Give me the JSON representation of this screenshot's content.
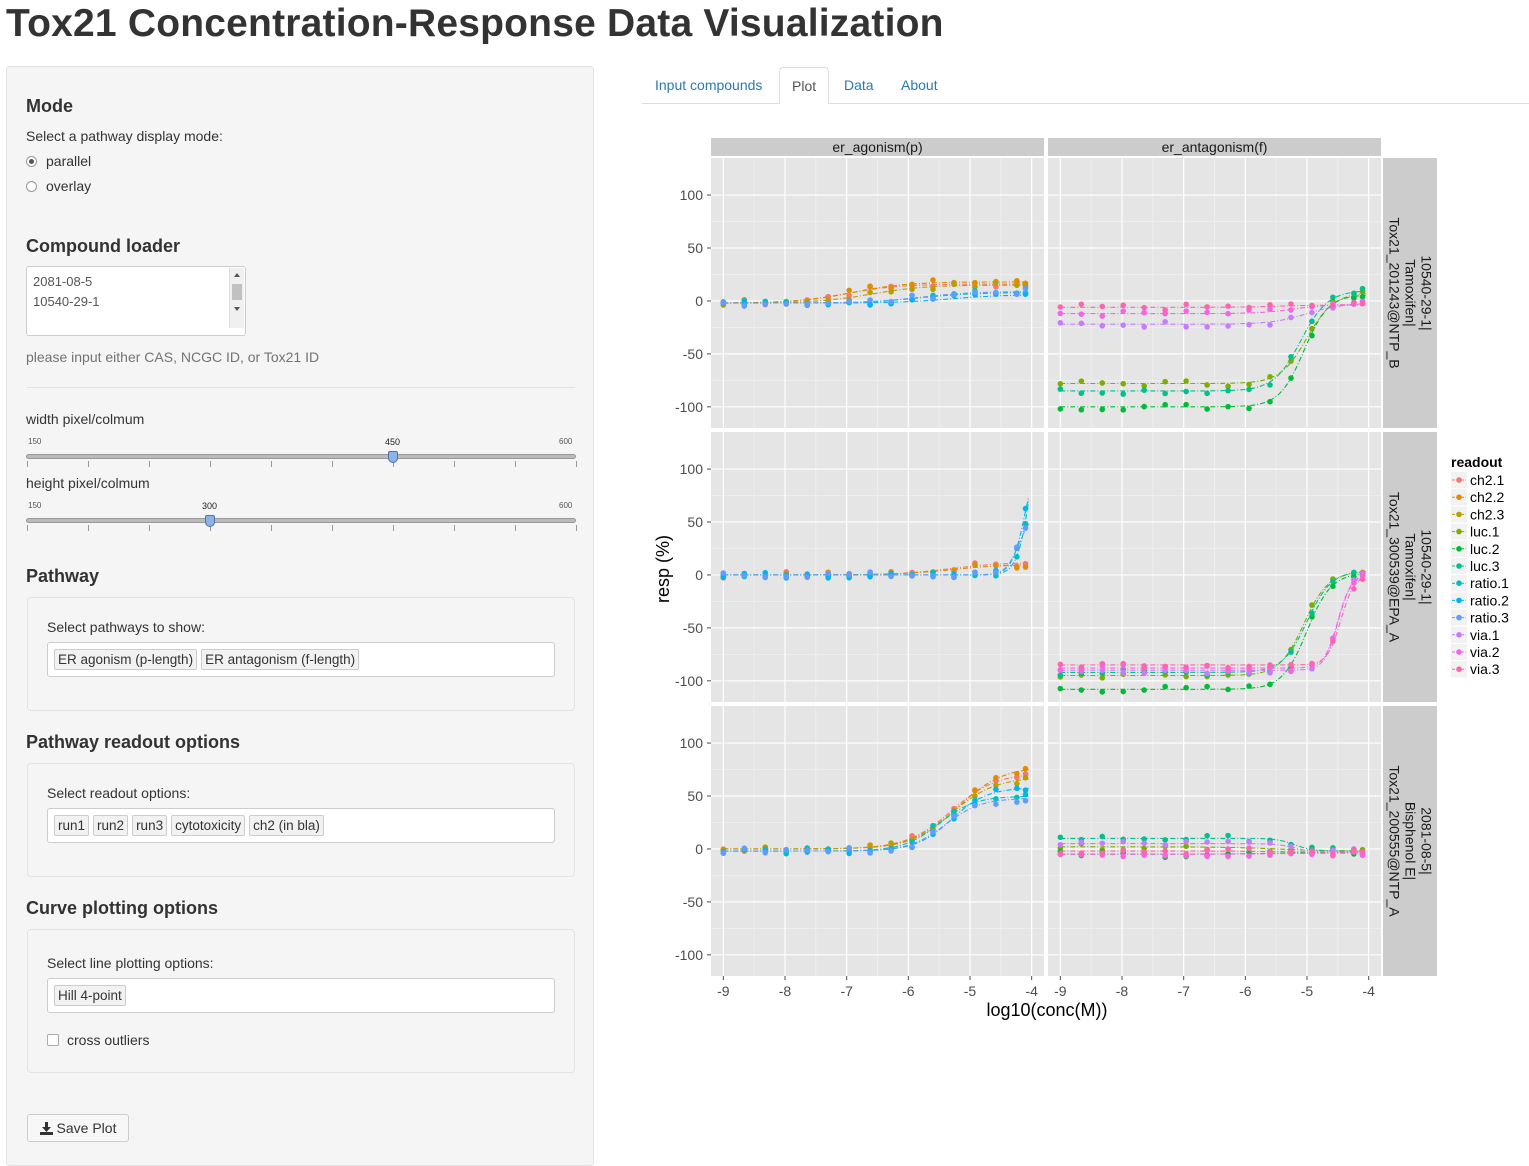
{
  "app": {
    "title": "Tox21 Concentration-Response Data Visualization"
  },
  "sidebar": {
    "mode": {
      "heading": "Mode",
      "prompt": "Select a pathway display mode:",
      "options": [
        "parallel",
        "overlay"
      ],
      "selected": "parallel"
    },
    "compound_loader": {
      "heading": "Compound loader",
      "value_lines": [
        "2081-08-5",
        "10540-29-1"
      ],
      "help": "please input either CAS, NCGC ID, or Tox21 ID"
    },
    "width_slider": {
      "label": "width pixel/colmum",
      "min": "150",
      "max": "600",
      "value": "450"
    },
    "height_slider": {
      "label": "height pixel/colmum",
      "min": "150",
      "max": "600",
      "value": "300"
    },
    "pathway": {
      "heading": "Pathway",
      "prompt": "Select pathways to show:",
      "selected": [
        "ER agonism (p-length)",
        "ER antagonism (f-length)"
      ]
    },
    "readout": {
      "heading": "Pathway readout options",
      "prompt": "Select readout options:",
      "selected": [
        "run1",
        "run2",
        "run3",
        "cytotoxicity",
        "ch2 (in bla)"
      ]
    },
    "curve": {
      "heading": "Curve plotting options",
      "prompt": "Select line plotting options:",
      "selected": [
        "Hill 4-point"
      ],
      "checkbox_label": "cross outliers",
      "checkbox_checked": false
    },
    "save_button": "Save Plot"
  },
  "tabs": [
    {
      "label": "Input compounds",
      "active": false
    },
    {
      "label": "Plot",
      "active": true
    },
    {
      "label": "Data",
      "active": false
    },
    {
      "label": "About",
      "active": false
    }
  ],
  "chart_data": {
    "type": "scatter",
    "xlabel": "log10(conc(M))",
    "ylabel": "resp (%)",
    "xlim": [
      -9.2,
      -3.8
    ],
    "ylim": [
      -120,
      135
    ],
    "x_ticks": [
      -9,
      -8,
      -7,
      -6,
      -5,
      -4
    ],
    "y_ticks": [
      100,
      50,
      0,
      -50,
      -100
    ],
    "columns": [
      "er_agonism(p)",
      "er_antagonism(f)"
    ],
    "rows": [
      [
        "10540-29-1|",
        "Tamoxifen|",
        "Tox21_201243@NTP_B"
      ],
      [
        "10540-29-1|",
        "Tamoxifen|",
        "Tox21_300539@EPA_A"
      ],
      [
        "2081-08-5|",
        "Bisphenol E|",
        "Tox21_200555@NTP_A"
      ]
    ],
    "legend": {
      "title": "readout",
      "position": "right",
      "entries": [
        "ch2.1",
        "ch2.2",
        "ch2.3",
        "luc.1",
        "luc.2",
        "luc.3",
        "ratio.1",
        "ratio.2",
        "ratio.3",
        "via.1",
        "via.2",
        "via.3"
      ],
      "colors": [
        "#F8766D",
        "#DE8C00",
        "#B79F00",
        "#7CAE00",
        "#00BA38",
        "#00C08B",
        "#00BFC4",
        "#00B4F0",
        "#619CFF",
        "#C77CFF",
        "#F564E3",
        "#FF64B0"
      ]
    },
    "concentrations": [
      -9,
      -8.66,
      -8.32,
      -7.98,
      -7.64,
      -7.3,
      -6.96,
      -6.62,
      -6.28,
      -5.94,
      -5.6,
      -5.26,
      -4.92,
      -4.58,
      -4.24,
      -4.1
    ],
    "panels": [
      {
        "row": 0,
        "col": 0,
        "series": [
          {
            "readout": "ch2.1",
            "curve": {
              "bottom": -2,
              "top": 16,
              "ac50": -7.0,
              "hill": 1.0
            }
          },
          {
            "readout": "ch2.2",
            "curve": {
              "bottom": -2,
              "top": 18,
              "ac50": -6.9,
              "hill": 1.0
            }
          },
          {
            "readout": "ch2.3",
            "curve": {
              "bottom": -2,
              "top": 15,
              "ac50": -6.6,
              "hill": 1.0
            }
          },
          {
            "readout": "ratio.1",
            "curve": {
              "bottom": -2,
              "top": 8,
              "ac50": -5.8,
              "hill": 1.0
            }
          },
          {
            "readout": "ratio.2",
            "curve": {
              "bottom": -2,
              "top": 6,
              "ac50": -5.3,
              "hill": 1.0
            }
          },
          {
            "readout": "ratio.3",
            "curve": {
              "bottom": -2,
              "top": 9,
              "ac50": -5.8,
              "hill": 1.0
            }
          }
        ]
      },
      {
        "row": 0,
        "col": 1,
        "series": [
          {
            "readout": "luc.1",
            "curve": {
              "bottom": -78,
              "top": 8,
              "ac50": -5.0,
              "hill": 2.0
            }
          },
          {
            "readout": "luc.2",
            "curve": {
              "bottom": -100,
              "top": 6,
              "ac50": -5.05,
              "hill": 2.2
            }
          },
          {
            "readout": "luc.3",
            "curve": {
              "bottom": -85,
              "top": 10,
              "ac50": -5.1,
              "hill": 2.0
            }
          },
          {
            "readout": "via.1",
            "curve": {
              "bottom": -22,
              "top": -2,
              "ac50": -5.0,
              "hill": 1.5
            }
          },
          {
            "readout": "via.2",
            "curve": {
              "bottom": -12,
              "top": -3,
              "ac50": -5.2,
              "hill": 1.5
            }
          },
          {
            "readout": "via.3",
            "curve": {
              "bottom": -6,
              "top": -4,
              "ac50": -5.5,
              "hill": 1.5
            }
          }
        ]
      },
      {
        "row": 1,
        "col": 0,
        "series": [
          {
            "readout": "ch2.1",
            "curve": {
              "bottom": 0,
              "top": 12,
              "ac50": -5.3,
              "hill": 1.0
            }
          },
          {
            "readout": "ch2.2",
            "curve": {
              "bottom": 0,
              "top": 10,
              "ac50": -5.3,
              "hill": 1.0
            }
          },
          {
            "readout": "ratio.1",
            "curve": {
              "bottom": 0,
              "top": 180,
              "ac50": -4.0,
              "hill": 4.0
            }
          },
          {
            "readout": "ratio.2",
            "curve": {
              "bottom": 0,
              "top": 120,
              "ac50": -4.1,
              "hill": 4.0
            }
          },
          {
            "readout": "ratio.3",
            "curve": {
              "bottom": 0,
              "top": 60,
              "ac50": -4.2,
              "hill": 4.0
            }
          }
        ]
      },
      {
        "row": 1,
        "col": 1,
        "series": [
          {
            "readout": "luc.1",
            "curve": {
              "bottom": -95,
              "top": 3,
              "ac50": -5.05,
              "hill": 2.2
            }
          },
          {
            "readout": "luc.2",
            "curve": {
              "bottom": -108,
              "top": 2,
              "ac50": -5.0,
              "hill": 2.2
            }
          },
          {
            "readout": "luc.3",
            "curve": {
              "bottom": -92,
              "top": 4,
              "ac50": -5.0,
              "hill": 2.2
            }
          },
          {
            "readout": "via.1",
            "curve": {
              "bottom": -90,
              "top": 0,
              "ac50": -4.5,
              "hill": 4.0
            }
          },
          {
            "readout": "via.2",
            "curve": {
              "bottom": -88,
              "top": 1,
              "ac50": -4.5,
              "hill": 4.0
            }
          },
          {
            "readout": "via.3",
            "curve": {
              "bottom": -85,
              "top": 0,
              "ac50": -4.45,
              "hill": 4.0
            }
          }
        ]
      },
      {
        "row": 2,
        "col": 0,
        "series": [
          {
            "readout": "ch2.1",
            "curve": {
              "bottom": 0,
              "top": 72,
              "ac50": -5.3,
              "hill": 1.2
            }
          },
          {
            "readout": "ch2.2",
            "curve": {
              "bottom": 0,
              "top": 78,
              "ac50": -5.2,
              "hill": 1.2
            }
          },
          {
            "readout": "ch2.3",
            "curve": {
              "bottom": 0,
              "top": 68,
              "ac50": -5.3,
              "hill": 1.2
            }
          },
          {
            "readout": "ratio.1",
            "curve": {
              "bottom": -2,
              "top": 50,
              "ac50": -5.5,
              "hill": 1.5
            }
          },
          {
            "readout": "ratio.2",
            "curve": {
              "bottom": -2,
              "top": 58,
              "ac50": -5.3,
              "hill": 1.5
            }
          },
          {
            "readout": "ratio.3",
            "curve": {
              "bottom": -2,
              "top": 48,
              "ac50": -5.4,
              "hill": 1.5
            }
          }
        ]
      },
      {
        "row": 2,
        "col": 1,
        "series": [
          {
            "readout": "luc.1",
            "curve": {
              "bottom": 2,
              "top": -2,
              "ac50": -5.5,
              "hill": 1.0
            }
          },
          {
            "readout": "luc.2",
            "curve": {
              "bottom": -5,
              "top": -3,
              "ac50": -5.5,
              "hill": 1.0
            }
          },
          {
            "readout": "luc.3",
            "curve": {
              "bottom": 10,
              "top": -2,
              "ac50": -5.2,
              "hill": 3.0
            }
          },
          {
            "readout": "via.1",
            "curve": {
              "bottom": 5,
              "top": -3,
              "ac50": -5.2,
              "hill": 3.0
            }
          },
          {
            "readout": "via.2",
            "curve": {
              "bottom": -5,
              "top": -4,
              "ac50": -5.5,
              "hill": 1.0
            }
          },
          {
            "readout": "via.3",
            "curve": {
              "bottom": -2,
              "top": -3,
              "ac50": -5.5,
              "hill": 1.0
            }
          }
        ]
      }
    ]
  }
}
